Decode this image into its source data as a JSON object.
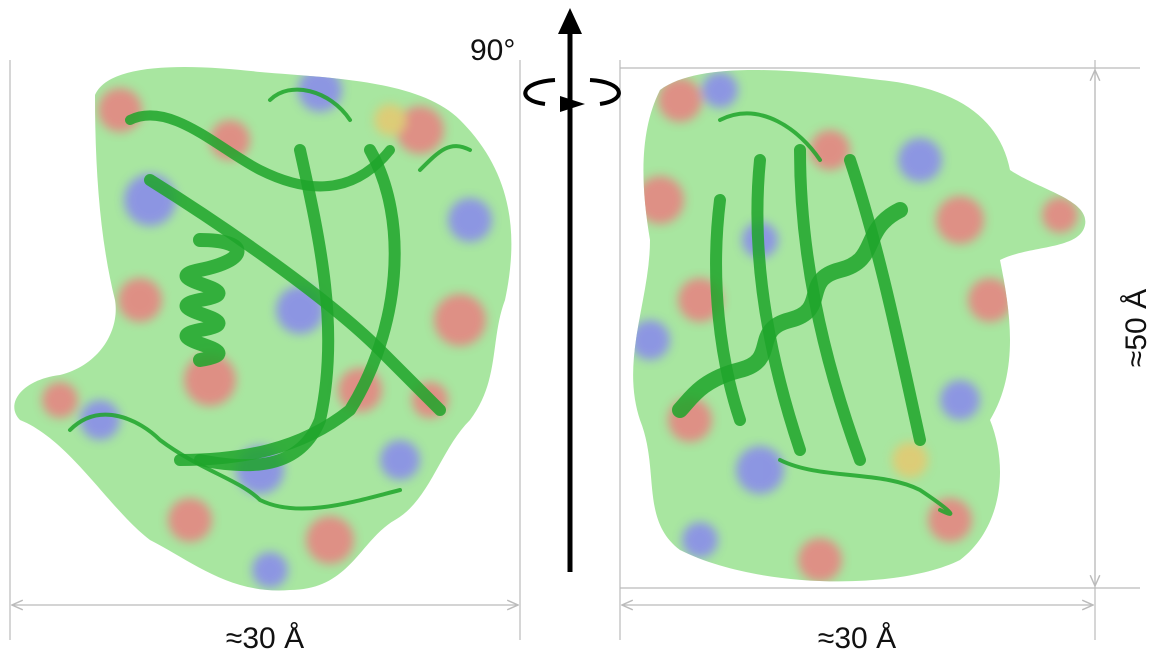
{
  "rotation_label": "90°",
  "views": [
    {
      "width_label": "≈30 Å"
    },
    {
      "width_label": "≈30 Å",
      "height_label": "≈50 Å"
    }
  ]
}
